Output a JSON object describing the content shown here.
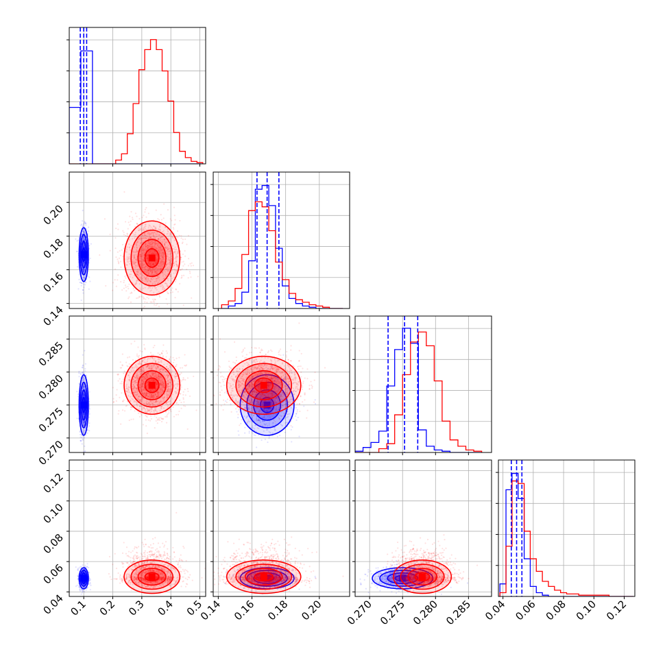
{
  "chart_data": {
    "type": "corner",
    "grid": true,
    "series": [
      {
        "name": "",
        "color": "#0000ff",
        "centers": [
          0.1,
          0.169,
          0.275,
          0.049
        ],
        "spreads": [
          0.008,
          0.008,
          0.0023,
          0.0035
        ],
        "hist_peak_index": [
          0,
          1,
          2,
          3
        ]
      },
      {
        "name": "",
        "color": "#ff0000",
        "centers": [
          0.335,
          0.167,
          0.278,
          0.05
        ],
        "spreads": [
          0.048,
          0.011,
          0.0022,
          0.0055
        ]
      }
    ],
    "quantile_lines": [
      [
        0.088,
        0.1,
        0.11
      ],
      [
        0.163,
        0.169,
        0.176
      ],
      [
        0.2728,
        0.2753,
        0.2773
      ],
      [
        0.0455,
        0.049,
        0.0525
      ]
    ],
    "histograms": [
      {
        "edges": [
          0.05,
          0.09,
          0.13,
          0.17,
          0.21,
          0.23,
          0.25,
          0.27,
          0.29,
          0.31,
          0.33,
          0.35,
          0.37,
          0.39,
          0.41,
          0.43,
          0.45,
          0.47,
          0.49,
          0.51
        ],
        "blue": [
          0.45,
          0.9,
          0,
          0,
          0,
          0,
          0,
          0,
          0,
          0,
          0,
          0,
          0,
          0,
          0,
          0,
          0,
          0,
          0
        ],
        "red": [
          0,
          0,
          0,
          0,
          0.03,
          0.08,
          0.24,
          0.48,
          0.75,
          0.91,
          0.99,
          0.91,
          0.74,
          0.5,
          0.25,
          0.1,
          0.05,
          0.02,
          0.01
        ]
      },
      {
        "edges": [
          0.142,
          0.146,
          0.15,
          0.154,
          0.158,
          0.162,
          0.166,
          0.17,
          0.174,
          0.178,
          0.182,
          0.186,
          0.19,
          0.194,
          0.198,
          0.202,
          0.206,
          0.21,
          0.214
        ],
        "blue": [
          0,
          0.02,
          0.04,
          0.13,
          0.38,
          0.95,
          0.98,
          0.82,
          0.48,
          0.18,
          0.08,
          0.04,
          0.02,
          0.01,
          0,
          0,
          0,
          0
        ],
        "red": [
          0.03,
          0.06,
          0.16,
          0.43,
          0.78,
          0.85,
          0.81,
          0.62,
          0.37,
          0.23,
          0.12,
          0.07,
          0.05,
          0.03,
          0.02,
          0.01,
          0,
          0
        ]
      },
      {
        "edges": [
          0.2678,
          0.269,
          0.2702,
          0.2714,
          0.2726,
          0.2738,
          0.275,
          0.2762,
          0.2774,
          0.2786,
          0.2798,
          0.281,
          0.2822,
          0.2834,
          0.2846,
          0.2858,
          0.287
        ],
        "blue": [
          0.01,
          0.04,
          0.08,
          0.17,
          0.53,
          0.82,
          0.99,
          0.87,
          0.18,
          0.05,
          0.02,
          0.01,
          0,
          0,
          0,
          0
        ],
        "red": [
          0,
          0,
          0,
          0.03,
          0.07,
          0.3,
          0.62,
          0.88,
          0.96,
          0.85,
          0.57,
          0.25,
          0.1,
          0.05,
          0.02,
          0.01
        ]
      },
      {
        "edges": [
          0.038,
          0.042,
          0.046,
          0.05,
          0.054,
          0.058,
          0.062,
          0.066,
          0.07,
          0.074,
          0.078,
          0.082,
          0.086,
          0.09,
          0.094,
          0.098,
          0.102,
          0.106,
          0.11,
          0.114,
          0.118,
          0.122,
          0.126
        ],
        "blue": [
          0.1,
          0.85,
          0.98,
          0.78,
          0.3,
          0.08,
          0.03,
          0.01,
          0,
          0,
          0,
          0,
          0,
          0,
          0,
          0,
          0,
          0,
          0,
          0,
          0,
          0
        ],
        "red": [
          0.03,
          0.4,
          0.92,
          0.9,
          0.52,
          0.3,
          0.2,
          0.12,
          0.08,
          0.05,
          0.03,
          0.02,
          0.02,
          0.01,
          0.01,
          0.01,
          0.01,
          0.01,
          0,
          0,
          0,
          0
        ]
      }
    ],
    "axes": [
      {
        "range": [
          0.05,
          0.52
        ],
        "ticks": [
          0.1,
          0.2,
          0.3,
          0.4,
          0.5
        ],
        "tick_labels": [
          "0.1",
          "0.2",
          "0.3",
          "0.4",
          "0.5"
        ]
      },
      {
        "range": [
          0.137,
          0.218
        ],
        "ticks": [
          0.14,
          0.16,
          0.18,
          0.2
        ],
        "tick_labels": [
          "0.14",
          "0.16",
          "0.18",
          "0.20"
        ]
      },
      {
        "range": [
          0.2678,
          0.2885
        ],
        "ticks": [
          0.27,
          0.275,
          0.28,
          0.285
        ],
        "tick_labels": [
          "0.270",
          "0.275",
          "0.280",
          "0.285"
        ]
      },
      {
        "range": [
          0.037,
          0.127
        ],
        "ticks": [
          0.04,
          0.06,
          0.08,
          0.1,
          0.12
        ],
        "tick_labels": [
          "0.04",
          "0.06",
          "0.08",
          "0.10",
          "0.12"
        ]
      }
    ]
  }
}
